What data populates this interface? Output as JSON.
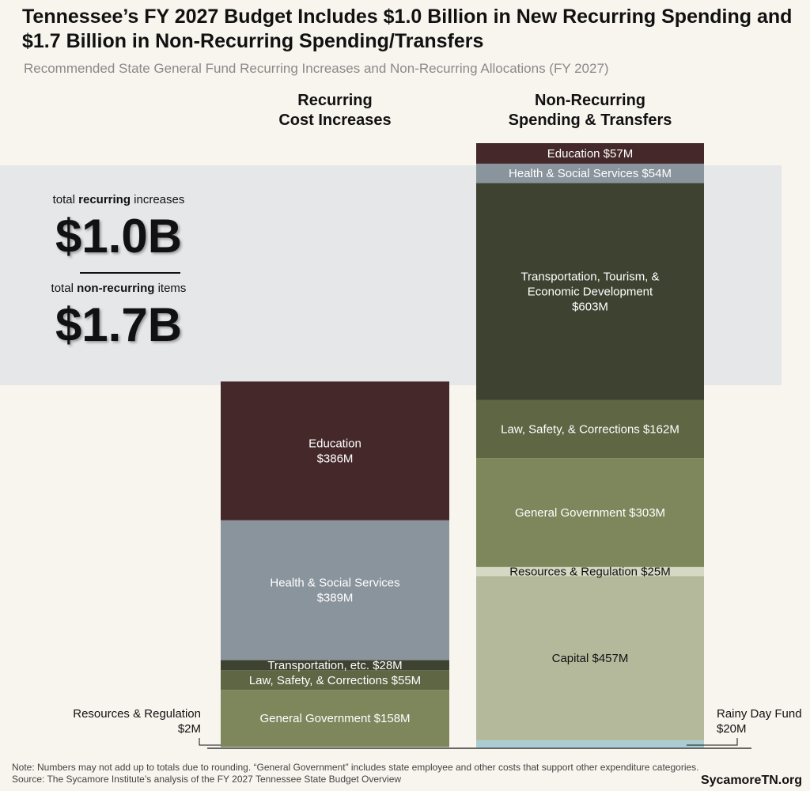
{
  "title": "Tennessee’s FY 2027 Budget Includes $1.0 Billion in New Recurring Spending and $1.7 Billion in Non-Recurring Spending/Transfers",
  "subtitle": "Recommended State General Fund Recurring Increases and Non-Recurring Allocations (FY 2027)",
  "totals": {
    "recurring_label_pre": "total ",
    "recurring_label_bold": "recurring",
    "recurring_label_post": " increases",
    "recurring_value": "$1.0B",
    "nonrecurring_label_pre": "total ",
    "nonrecurring_label_bold": "non-recurring",
    "nonrecurring_label_post": " items",
    "nonrecurring_value": "$1.7B"
  },
  "chart_data": {
    "type": "bar",
    "stacked": true,
    "unit": "$M",
    "categories": [
      "Recurring\nCost Increases",
      "Non-Recurring\nSpending & Transfers"
    ],
    "stacks": [
      {
        "category": "Recurring\nCost Increases",
        "segments": [
          {
            "name": "Resources & Regulation",
            "value": 2,
            "label": "Resources & Regulation\n$2M",
            "color": "#c9cdb2",
            "outside": "left"
          },
          {
            "name": "General Government",
            "value": 158,
            "label": "General Government $158M",
            "color": "#7e865c"
          },
          {
            "name": "Law, Safety, & Corrections",
            "value": 55,
            "label": "Law, Safety, & Corrections $55M",
            "color": "#5f6644"
          },
          {
            "name": "Transportation, etc.",
            "value": 28,
            "label": "Transportation, etc. $28M",
            "color": "#3e4230"
          },
          {
            "name": "Health & Social Services",
            "value": 389,
            "label": "Health & Social Services\n$389M",
            "color": "#8a949c"
          },
          {
            "name": "Education",
            "value": 386,
            "label": "Education\n$386M",
            "color": "#45282a"
          }
        ]
      },
      {
        "category": "Non-Recurring\nSpending & Transfers",
        "segments": [
          {
            "name": "Rainy Day Fund",
            "value": 20,
            "label": "Rainy Day Fund\n$20M",
            "color": "#a9cdd3",
            "outside": "right"
          },
          {
            "name": "Capital",
            "value": 457,
            "label": "Capital $457M",
            "color": "#b5b99c",
            "dark": true
          },
          {
            "name": "Resources & Regulation",
            "value": 25,
            "label": "Resources & Regulation $25M",
            "color": "#d5d8c2",
            "dark": true
          },
          {
            "name": "General Government",
            "value": 303,
            "label": "General Government  $303M",
            "color": "#7e865c"
          },
          {
            "name": "Law, Safety, & Corrections",
            "value": 162,
            "label": "Law, Safety, & Corrections $162M",
            "color": "#5f6644"
          },
          {
            "name": "Transportation, Tourism, & Economic Development",
            "value": 603,
            "label": "Transportation, Tourism, &\nEconomic Development\n$603M",
            "color": "#3e4230"
          },
          {
            "name": "Health & Social Services",
            "value": 54,
            "label": "Health & Social Services $54M",
            "color": "#8a949c"
          },
          {
            "name": "Education",
            "value": 57,
            "label": "Education $57M",
            "color": "#45282a"
          }
        ]
      }
    ]
  },
  "note": "Note: Numbers may not add up to totals due to rounding. “General Government” includes state employee and other costs that support other expenditure categories.",
  "source": "Source: The Sycamore Institute’s analysis of the FY 2027 Tennessee State Budget Overview",
  "brand": "SycamoreTN.org"
}
